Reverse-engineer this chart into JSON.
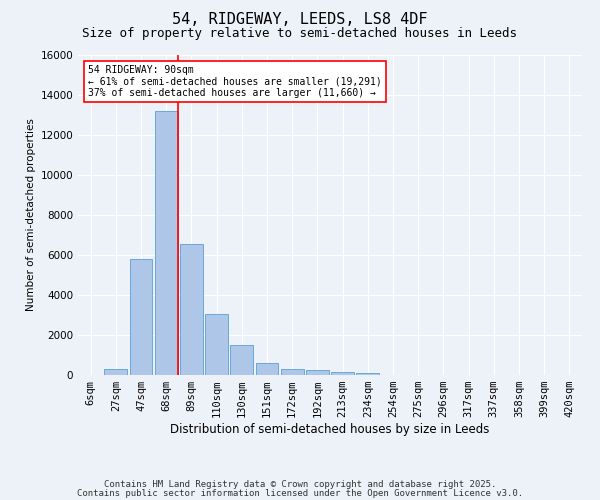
{
  "title": "54, RIDGEWAY, LEEDS, LS8 4DF",
  "subtitle": "Size of property relative to semi-detached houses in Leeds",
  "xlabel": "Distribution of semi-detached houses by size in Leeds",
  "ylabel": "Number of semi-detached properties",
  "bar_labels": [
    "6sqm",
    "27sqm",
    "47sqm",
    "68sqm",
    "89sqm",
    "110sqm",
    "130sqm",
    "151sqm",
    "172sqm",
    "192sqm",
    "213sqm",
    "234sqm",
    "254sqm",
    "275sqm",
    "296sqm",
    "317sqm",
    "337sqm",
    "358sqm",
    "399sqm",
    "420sqm"
  ],
  "bar_values": [
    0,
    300,
    5800,
    13200,
    6550,
    3050,
    1500,
    600,
    300,
    250,
    130,
    100,
    0,
    0,
    0,
    0,
    0,
    0,
    0,
    0
  ],
  "bar_color": "#aec6e8",
  "bar_edgecolor": "#5a9fd4",
  "vline_color": "red",
  "vline_x_index": 3,
  "annotation_text": "54 RIDGEWAY: 90sqm\n← 61% of semi-detached houses are smaller (19,291)\n37% of semi-detached houses are larger (11,660) →",
  "annotation_box_color": "white",
  "annotation_box_edgecolor": "red",
  "ylim": [
    0,
    16000
  ],
  "yticks": [
    0,
    2000,
    4000,
    6000,
    8000,
    10000,
    12000,
    14000,
    16000
  ],
  "footer1": "Contains HM Land Registry data © Crown copyright and database right 2025.",
  "footer2": "Contains public sector information licensed under the Open Government Licence v3.0.",
  "bg_color": "#edf2f9",
  "plot_bg_color": "#edf2f9",
  "grid_color": "white",
  "title_fontsize": 11,
  "subtitle_fontsize": 9,
  "footer_fontsize": 6.5
}
